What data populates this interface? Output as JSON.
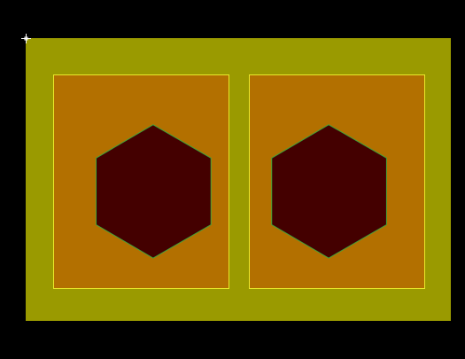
{
  "colors": {
    "background": "#000000",
    "board_fill": "#9a9a00",
    "panel_fill": "#b37000",
    "panel_border": "#e8e82a",
    "hexagon_fill": "#440000",
    "hexagon_outline": "#3fa33a",
    "cursor": "#ffffff"
  },
  "board": {
    "panels": [
      {
        "name": "left-panel",
        "shape": "hexagon"
      },
      {
        "name": "right-panel",
        "shape": "hexagon"
      }
    ]
  },
  "cursor": {
    "icon": "crosshair-cursor-icon"
  }
}
